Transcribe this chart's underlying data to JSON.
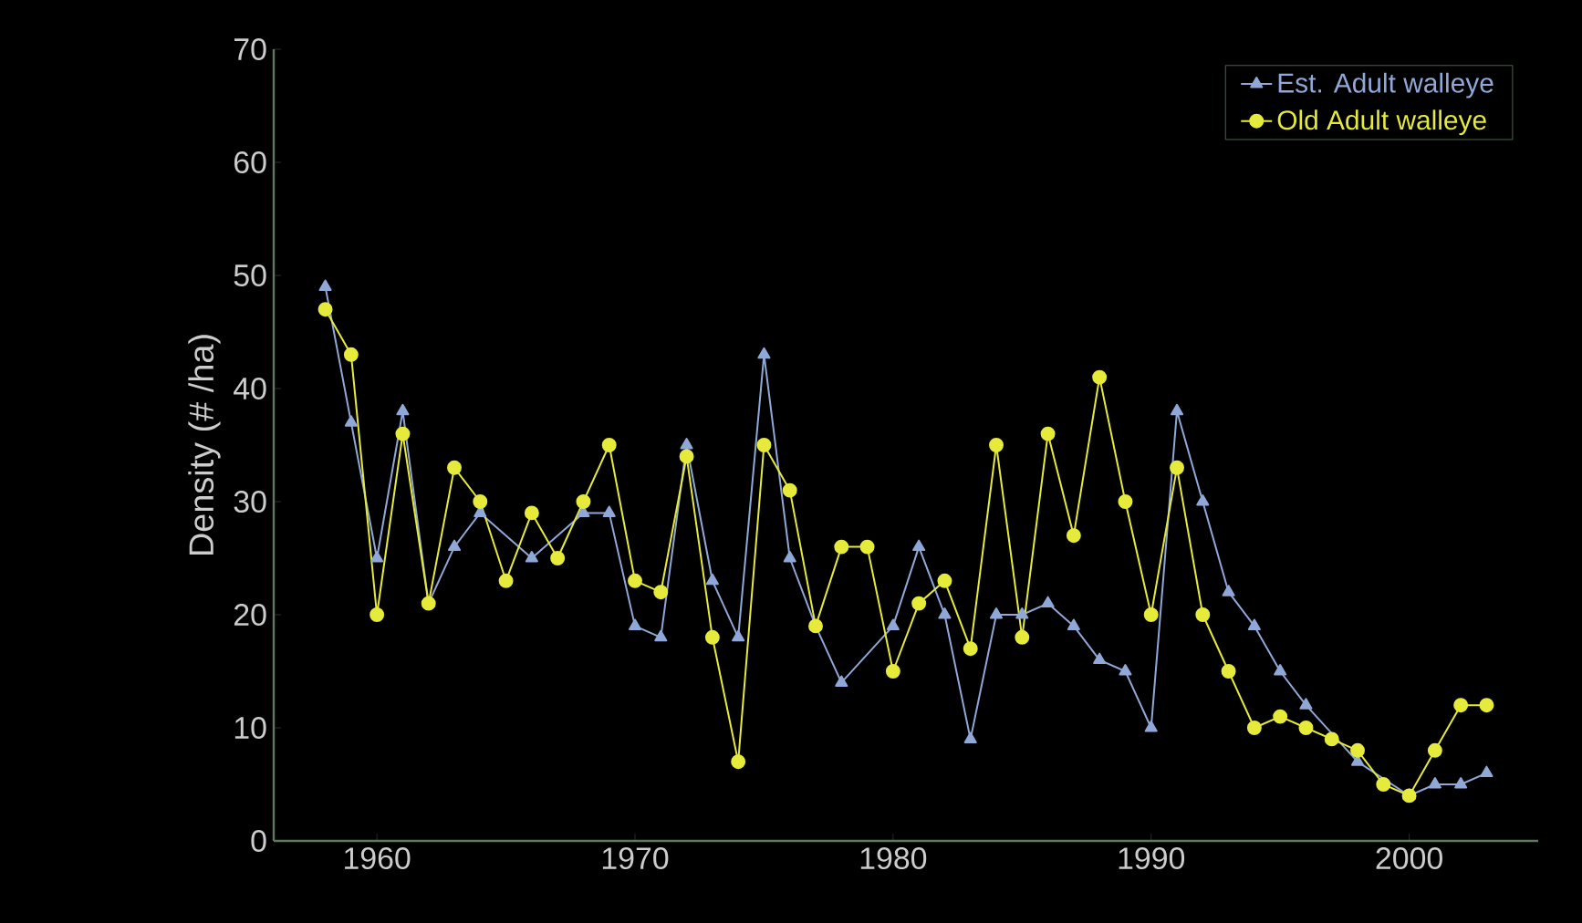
{
  "chart_data": {
    "type": "line",
    "ylabel": "Density (# /ha)",
    "x": [
      1958,
      1959,
      1960,
      1961,
      1962,
      1963,
      1964,
      1965,
      1966,
      1967,
      1968,
      1969,
      1970,
      1971,
      1972,
      1973,
      1974,
      1975,
      1976,
      1977,
      1978,
      1979,
      1980,
      1981,
      1982,
      1983,
      1984,
      1985,
      1986,
      1987,
      1988,
      1989,
      1990,
      1991,
      1992,
      1993,
      1994,
      1995,
      1996,
      1997,
      1998,
      1999,
      2000,
      2001,
      2002,
      2003
    ],
    "series": [
      {
        "name": "Est. Adult walleye",
        "color": "#8fa8d8",
        "marker": "triangle",
        "values": [
          49,
          37,
          25,
          38,
          21,
          26,
          29,
          null,
          25,
          null,
          29,
          29,
          19,
          18,
          35,
          23,
          18,
          43,
          25,
          19,
          14,
          null,
          19,
          26,
          20,
          9,
          20,
          20,
          21,
          19,
          16,
          15,
          10,
          38,
          30,
          22,
          19,
          15,
          12,
          null,
          7,
          null,
          4,
          5,
          5,
          6
        ]
      },
      {
        "name": "Old Adult walleye",
        "color": "#e6ea3a",
        "marker": "circle",
        "values": [
          47,
          43,
          20,
          36,
          21,
          33,
          30,
          23,
          29,
          25,
          30,
          35,
          23,
          22,
          34,
          18,
          7,
          35,
          31,
          19,
          26,
          26,
          15,
          21,
          23,
          17,
          35,
          18,
          36,
          27,
          41,
          30,
          20,
          33,
          20,
          15,
          10,
          11,
          10,
          9,
          8,
          5,
          4,
          8,
          12,
          12
        ]
      }
    ],
    "xlim": [
      1956,
      2005
    ],
    "ylim": [
      0,
      70
    ],
    "xticks": [
      1960,
      1970,
      1980,
      1990,
      2000
    ],
    "yticks": [
      0,
      10,
      20,
      30,
      40,
      50,
      60,
      70
    ],
    "grid": false,
    "legend": "top right",
    "line_style": "solid"
  }
}
